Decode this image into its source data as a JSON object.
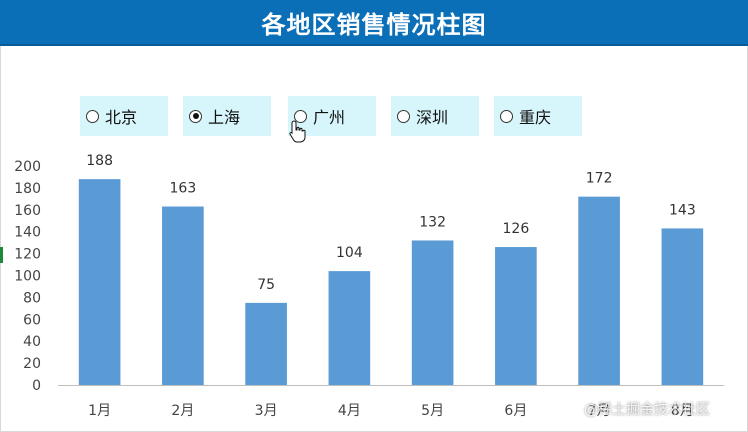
{
  "title": "各地区销售情况柱图",
  "regions": [
    {
      "label": "北京",
      "selected": false
    },
    {
      "label": "上海",
      "selected": true
    },
    {
      "label": "广州",
      "selected": false
    },
    {
      "label": "深圳",
      "selected": false
    },
    {
      "label": "重庆",
      "selected": false
    }
  ],
  "watermark": "@稀土掘金技术社区",
  "chart_data": {
    "type": "bar",
    "title": "",
    "xlabel": "",
    "ylabel": "",
    "categories": [
      "1月",
      "2月",
      "3月",
      "4月",
      "5月",
      "6月",
      "7月",
      "8月"
    ],
    "values": [
      188,
      163,
      75,
      104,
      132,
      126,
      172,
      143
    ],
    "ylim": [
      0,
      200
    ],
    "yticks": [
      0,
      20,
      40,
      60,
      80,
      100,
      120,
      140,
      160,
      180,
      200
    ],
    "grid": false,
    "legend": "none",
    "bar_color": "#5b9bd5"
  }
}
